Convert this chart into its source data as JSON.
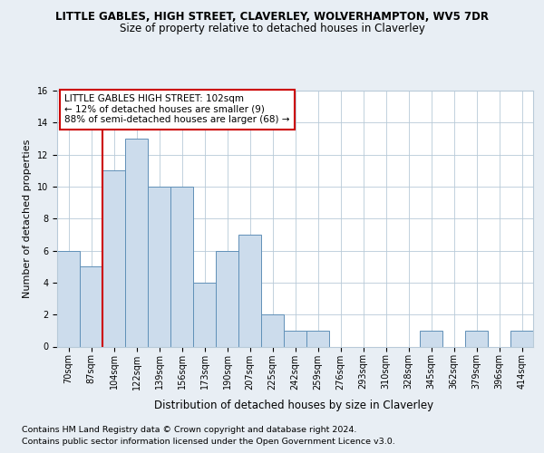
{
  "title1": "LITTLE GABLES, HIGH STREET, CLAVERLEY, WOLVERHAMPTON, WV5 7DR",
  "title2": "Size of property relative to detached houses in Claverley",
  "xlabel": "Distribution of detached houses by size in Claverley",
  "ylabel": "Number of detached properties",
  "footer1": "Contains HM Land Registry data © Crown copyright and database right 2024.",
  "footer2": "Contains public sector information licensed under the Open Government Licence v3.0.",
  "annotation_line1": "LITTLE GABLES HIGH STREET: 102sqm",
  "annotation_line2": "← 12% of detached houses are smaller (9)",
  "annotation_line3": "88% of semi-detached houses are larger (68) →",
  "bar_color": "#ccdcec",
  "bar_edge_color": "#6090b8",
  "ref_line_color": "#cc0000",
  "ref_line_x": 1.5,
  "categories": [
    "70sqm",
    "87sqm",
    "104sqm",
    "122sqm",
    "139sqm",
    "156sqm",
    "173sqm",
    "190sqm",
    "207sqm",
    "225sqm",
    "242sqm",
    "259sqm",
    "276sqm",
    "293sqm",
    "310sqm",
    "328sqm",
    "345sqm",
    "362sqm",
    "379sqm",
    "396sqm",
    "414sqm"
  ],
  "values": [
    6,
    5,
    11,
    13,
    10,
    10,
    4,
    6,
    7,
    2,
    1,
    1,
    0,
    0,
    0,
    0,
    1,
    0,
    1,
    0,
    1
  ],
  "ylim": [
    0,
    16
  ],
  "yticks": [
    0,
    2,
    4,
    6,
    8,
    10,
    12,
    14,
    16
  ],
  "background_color": "#e8eef4",
  "plot_background": "#ffffff",
  "grid_color": "#b8cad8",
  "title1_fontsize": 8.5,
  "title2_fontsize": 8.5,
  "ylabel_fontsize": 8.0,
  "xlabel_fontsize": 8.5,
  "tick_fontsize": 7.0,
  "annotation_fontsize": 7.5,
  "footer_fontsize": 6.8
}
